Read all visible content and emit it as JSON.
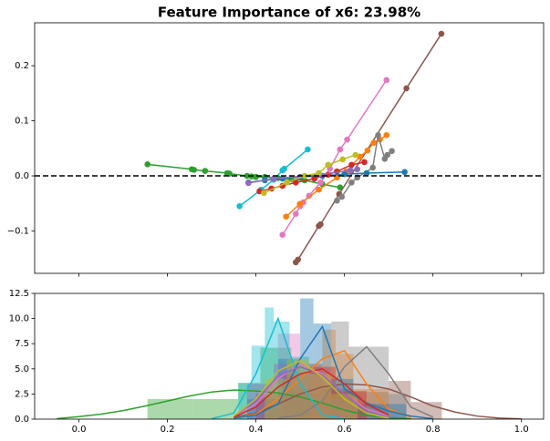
{
  "chart_data": [
    {
      "type": "line",
      "title": "Feature Importance of x6: 23.98%",
      "xlim": [
        -0.1,
        1.05
      ],
      "ylim": [
        -0.177,
        0.278
      ],
      "xticks": [
        0,
        0.2,
        0.4,
        0.6,
        0.8,
        1
      ],
      "show_xtick_labels": false,
      "yticks": [
        {
          "value": -0.1,
          "label": "−0.1"
        },
        {
          "value": 0,
          "label": "0.0"
        },
        0.1,
        0.2
      ],
      "reference_line": 0,
      "series": [
        {
          "color": "#2ca02c",
          "x": [
            0.155,
            0.255,
            0.26,
            0.285,
            0.335,
            0.34,
            0.38,
            0.39,
            0.4,
            0.42,
            0.45,
            0.48,
            0.51,
            0.55,
            0.59
          ],
          "values": [
            0.021,
            0.012,
            0.011,
            0.009,
            0.005,
            0.004,
            0.0,
            -0.001,
            -0.002,
            -0.002,
            -0.004,
            -0.006,
            -0.008,
            -0.015,
            -0.021
          ]
        },
        {
          "color": "#8c564b",
          "x": [
            0.49,
            0.495,
            0.542,
            0.546,
            0.588,
            0.74,
            0.819
          ],
          "values": [
            -0.157,
            -0.152,
            -0.091,
            -0.088,
            -0.033,
            0.159,
            0.258
          ]
        },
        {
          "color": "#e377c2",
          "x": [
            0.46,
            0.49,
            0.5,
            0.507,
            0.52,
            0.546,
            0.567,
            0.59,
            0.606,
            0.695
          ],
          "values": [
            -0.107,
            -0.069,
            -0.055,
            -0.048,
            -0.036,
            -0.012,
            0.013,
            0.048,
            0.066,
            0.174
          ]
        },
        {
          "color": "#ff7f0e",
          "x": [
            0.468,
            0.499,
            0.542,
            0.583,
            0.604,
            0.635,
            0.652,
            0.666,
            0.68,
            0.695
          ],
          "values": [
            -0.074,
            -0.051,
            -0.025,
            -0.003,
            0.008,
            0.035,
            0.046,
            0.06,
            0.066,
            0.074
          ]
        },
        {
          "color": "#17becf",
          "x": [
            0.363,
            0.412,
            0.44,
            0.46,
            0.464,
            0.517
          ],
          "values": [
            -0.055,
            -0.025,
            -0.007,
            0.01,
            0.013,
            0.048
          ]
        },
        {
          "color": "#7f7f7f",
          "x": [
            0.583,
            0.594,
            0.616,
            0.629,
            0.664,
            0.676,
            0.691,
            0.697,
            0.707
          ],
          "values": [
            -0.045,
            -0.038,
            -0.012,
            -0.003,
            0.015,
            0.074,
            0.031,
            0.038,
            0.045
          ]
        },
        {
          "color": "#1f77b4",
          "x": [
            0.383,
            0.42,
            0.46,
            0.5,
            0.55,
            0.6,
            0.65,
            0.736
          ],
          "values": [
            -0.012,
            -0.008,
            -0.005,
            -0.002,
            0.0,
            0.003,
            0.005,
            0.007
          ]
        },
        {
          "color": "#d62728",
          "x": [
            0.408,
            0.435,
            0.46,
            0.49,
            0.532,
            0.563,
            0.583,
            0.616,
            0.645
          ],
          "values": [
            -0.028,
            -0.023,
            -0.018,
            -0.012,
            -0.005,
            0.002,
            0.008,
            0.02,
            0.025
          ]
        },
        {
          "color": "#9467bd",
          "x": [
            0.383,
            0.44,
            0.542,
            0.614,
            0.629
          ],
          "values": [
            -0.013,
            -0.005,
            0.002,
            0.01,
            0.012
          ]
        },
        {
          "color": "#bcbd22",
          "x": [
            0.418,
            0.47,
            0.51,
            0.542,
            0.563,
            0.596,
            0.625
          ],
          "values": [
            -0.031,
            -0.012,
            0.0,
            0.005,
            0.02,
            0.03,
            0.038
          ]
        }
      ]
    },
    {
      "type": "hist_kde",
      "xlim": [
        -0.1,
        1.05
      ],
      "ylim": [
        0,
        12.5
      ],
      "xticks": [
        {
          "value": 0,
          "label": "0.0"
        },
        0.2,
        0.4,
        0.6,
        0.8,
        {
          "value": 1,
          "label": "1.0"
        }
      ],
      "yticks": [
        {
          "value": 0,
          "label": "0.0"
        },
        2.5,
        {
          "value": 5,
          "label": "5.0"
        },
        7.5,
        {
          "value": 10,
          "label": "10.0"
        },
        12.5
      ],
      "kde_x": [
        -0.05,
        0,
        0.05,
        0.1,
        0.15,
        0.2,
        0.25,
        0.3,
        0.35,
        0.4,
        0.45,
        0.5,
        0.55,
        0.6,
        0.65,
        0.7,
        0.75,
        0.8,
        0.85,
        0.9,
        0.95,
        1
      ],
      "series": [
        {
          "color": "#2ca02c",
          "bins": [
            0.155,
            0.257,
            0.36,
            0.41,
            0.48,
            0.59
          ],
          "counts": [
            2,
            2,
            3.6,
            7.1,
            1.8
          ],
          "kde": [
            0.05,
            0.25,
            0.5,
            0.85,
            1.3,
            1.8,
            2.3,
            2.7,
            2.9,
            2.8,
            2.6,
            2.2,
            1.6,
            0.9,
            0.4,
            0.15,
            0.05,
            null,
            null,
            null,
            null,
            null
          ]
        },
        {
          "color": "#8c564b",
          "bins": [
            0.48,
            0.55,
            0.62,
            0.7,
            0.75,
            0.82
          ],
          "counts": [
            2.5,
            3,
            2.7,
            3.8,
            1.7
          ],
          "kde": [
            null,
            null,
            null,
            null,
            null,
            null,
            null,
            null,
            0.2,
            0.6,
            1.5,
            2.5,
            3.2,
            3.5,
            3.4,
            3,
            2.2,
            1.3,
            0.7,
            0.3,
            0.1,
            0.02
          ]
        },
        {
          "color": "#e377c2",
          "bins": [
            0.45,
            0.5,
            0.55,
            0.6,
            0.7
          ],
          "counts": [
            8.5,
            5.5,
            3,
            1.5
          ],
          "kde": [
            null,
            null,
            null,
            null,
            null,
            null,
            null,
            null,
            0.2,
            1.5,
            4,
            5.5,
            4.5,
            2.5,
            1,
            0.3,
            null,
            null,
            null,
            null,
            null,
            null
          ]
        },
        {
          "color": "#ff7f0e",
          "bins": [
            0.46,
            0.52,
            0.55,
            0.58,
            0.62,
            0.7
          ],
          "counts": [
            3,
            5.5,
            8.9,
            6.5,
            3
          ],
          "kde": [
            null,
            null,
            null,
            null,
            null,
            null,
            null,
            null,
            0.1,
            0.5,
            2,
            4,
            6,
            6.8,
            3.5,
            1,
            0.2,
            null,
            null,
            null,
            null,
            null
          ]
        },
        {
          "color": "#17becf",
          "bins": [
            0.36,
            0.39,
            0.42,
            0.44,
            0.476,
            0.52
          ],
          "counts": [
            3.6,
            7.3,
            11.1,
            9.7,
            6.2
          ],
          "kde": [
            null,
            null,
            null,
            null,
            null,
            null,
            null,
            0.05,
            0.6,
            4.5,
            10,
            3.5,
            0.4,
            0.05,
            null,
            null,
            null,
            null,
            null,
            null,
            null,
            null
          ]
        },
        {
          "color": "#7f7f7f",
          "bins": [
            0.57,
            0.61,
            0.65,
            0.7,
            0.74
          ],
          "counts": [
            9.7,
            7.2,
            7.2,
            2.5
          ],
          "kde": [
            null,
            null,
            null,
            null,
            null,
            null,
            null,
            null,
            null,
            null,
            0.1,
            0.4,
            1.8,
            5.2,
            7.2,
            4.5,
            1.2,
            0.2,
            null,
            null,
            null,
            null
          ]
        },
        {
          "color": "#1f77b4",
          "bins": [
            0.38,
            0.45,
            0.5,
            0.53,
            0.57,
            0.62,
            0.74
          ],
          "counts": [
            2,
            6,
            12,
            9.5,
            4,
            1.5
          ],
          "kde": [
            null,
            null,
            null,
            null,
            null,
            null,
            null,
            null,
            0.1,
            0.4,
            1.5,
            6,
            9.2,
            3,
            1.6,
            0.8,
            0.3,
            0.05,
            null,
            null,
            null,
            null
          ]
        },
        {
          "color": "#d62728",
          "bins": [
            0.4,
            0.46,
            0.52,
            0.58,
            0.65
          ],
          "counts": [
            2.5,
            4.5,
            5.2,
            2.8
          ],
          "kde": [
            null,
            null,
            null,
            null,
            null,
            null,
            null,
            null,
            0.2,
            1.2,
            3.2,
            4.5,
            5,
            3.5,
            1.5,
            0.4,
            null,
            null,
            null,
            null,
            null,
            null
          ]
        },
        {
          "color": "#9467bd",
          "bins": [
            0.38,
            0.44,
            0.5,
            0.56,
            0.63
          ],
          "counts": [
            3.5,
            5.5,
            4.5,
            2
          ],
          "kde": [
            null,
            null,
            null,
            null,
            null,
            null,
            null,
            null,
            0.3,
            1.8,
            4.3,
            5.2,
            4.4,
            2.5,
            0.8,
            0.2,
            null,
            null,
            null,
            null,
            null,
            null
          ]
        },
        {
          "color": "#bcbd22",
          "bins": [
            0.42,
            0.47,
            0.52,
            0.57,
            0.63
          ],
          "counts": [
            4,
            6,
            4.5,
            2.5
          ],
          "kde": [
            null,
            null,
            null,
            null,
            null,
            null,
            null,
            null,
            0.3,
            2,
            4.8,
            5.8,
            4.2,
            2,
            0.6,
            0.1,
            null,
            null,
            null,
            null,
            null,
            null
          ]
        }
      ]
    }
  ]
}
